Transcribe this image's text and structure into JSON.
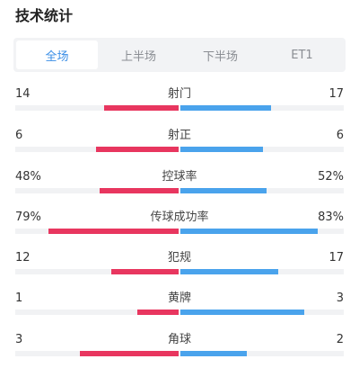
{
  "header": {
    "title": "技术统计"
  },
  "tabs": [
    {
      "label": "全场",
      "active": true
    },
    {
      "label": "上半场",
      "active": false
    },
    {
      "label": "下半场",
      "active": false
    },
    {
      "label": "ET1",
      "active": false
    }
  ],
  "colors": {
    "home": "#e8365f",
    "away": "#4aa3ec",
    "active_tab": "#3a8ee6"
  },
  "stats": [
    {
      "label": "射门",
      "home": "14",
      "away": "17",
      "home_share": 0.45,
      "away_share": 0.55
    },
    {
      "label": "射正",
      "home": "6",
      "away": "6",
      "home_share": 0.5,
      "away_share": 0.5
    },
    {
      "label": "控球率",
      "home": "48%",
      "away": "52%",
      "home_share": 0.48,
      "away_share": 0.52
    },
    {
      "label": "传球成功率",
      "home": "79%",
      "away": "83%",
      "home_share": 0.79,
      "away_share": 0.83
    },
    {
      "label": "犯规",
      "home": "12",
      "away": "17",
      "home_share": 0.41,
      "away_share": 0.59
    },
    {
      "label": "黄牌",
      "home": "1",
      "away": "3",
      "home_share": 0.25,
      "away_share": 0.75
    },
    {
      "label": "角球",
      "home": "3",
      "away": "2",
      "home_share": 0.6,
      "away_share": 0.4
    }
  ]
}
